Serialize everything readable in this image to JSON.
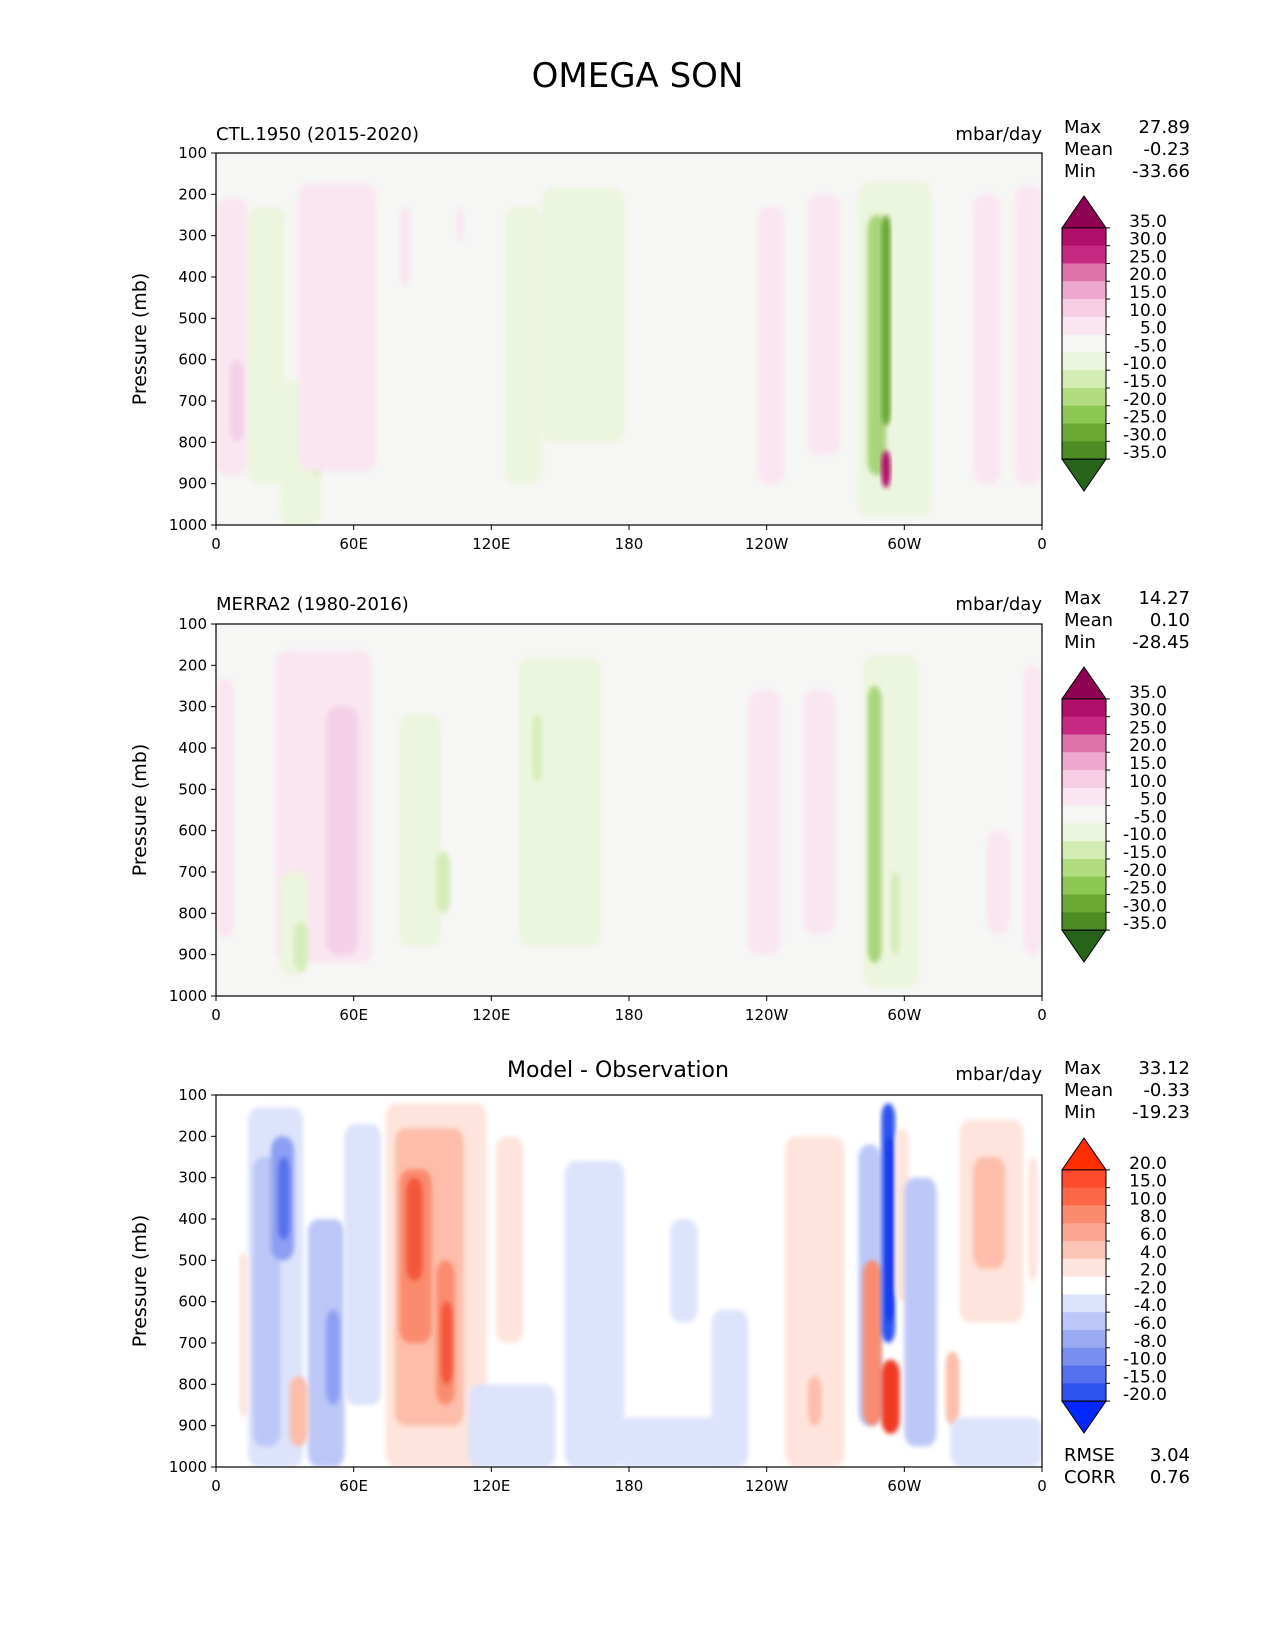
{
  "figure": {
    "title": "OMEGA SON"
  },
  "colors": {
    "background": "#f6f6f5",
    "diff_background": "#ffffff",
    "pink_light": "#f9e1ef",
    "pink_mid": "#f2c3dd",
    "magenta_dark": "#8e0152",
    "green_light": "#eaf5d8",
    "green_mid": "#cde8ad",
    "green_dark": "#4d9221",
    "red_light": "#fdd0c5",
    "red_mid": "#fb9a7f",
    "red_dark": "#ee3b24",
    "blue_light": "#dbe1fb",
    "blue_mid": "#aab7f5",
    "blue_dark": "#3d63f0"
  },
  "chart_data": [
    {
      "type": "heatmap",
      "id": "panel_model",
      "left_title": "CTL.1950 (2015-2020)",
      "center_title": "",
      "units": "mbar/day",
      "ylabel": "Pressure (mb)",
      "x_ticks": [
        "0",
        "60E",
        "120E",
        "180",
        "120W",
        "60W",
        "0"
      ],
      "x_range": [
        0,
        360
      ],
      "y_ticks": [
        "100",
        "200",
        "300",
        "400",
        "500",
        "600",
        "700",
        "800",
        "900",
        "1000"
      ],
      "y_range": [
        100,
        1000
      ],
      "stats": [
        {
          "label": "Max",
          "value": "27.89"
        },
        {
          "label": "Mean",
          "value": "-0.23"
        },
        {
          "label": "Min",
          "value": "-33.66"
        }
      ],
      "colorbar": {
        "levels": [
          "35.0",
          "30.0",
          "25.0",
          "20.0",
          "15.0",
          "10.0",
          "5.0",
          "-5.0",
          "-10.0",
          "-15.0",
          "-20.0",
          "-25.0",
          "-30.0",
          "-35.0"
        ],
        "colors": [
          "#8e0152",
          "#b0106b",
          "#c72a83",
          "#dd73a8",
          "#eda9cd",
          "#f6cde3",
          "#fae6f1",
          "#f6f6f5",
          "#ecf5dd",
          "#d3ecb3",
          "#b1dc7f",
          "#8cc653",
          "#6ba834",
          "#4d8c22",
          "#276419"
        ]
      },
      "features": [
        {
          "kind": "pos",
          "level": 1,
          "x0": 0,
          "x1": 14,
          "p0": 210,
          "p1": 880
        },
        {
          "kind": "pos",
          "level": 2,
          "x0": 6,
          "x1": 12,
          "p0": 600,
          "p1": 800
        },
        {
          "kind": "neg",
          "level": 1,
          "x0": 14,
          "x1": 30,
          "p0": 230,
          "p1": 900
        },
        {
          "kind": "neg",
          "level": 1,
          "x0": 28,
          "x1": 46,
          "p0": 650,
          "p1": 1000
        },
        {
          "kind": "neg",
          "level": 2,
          "x0": 42,
          "x1": 46,
          "p0": 820,
          "p1": 880
        },
        {
          "kind": "pos",
          "level": 1,
          "x0": 36,
          "x1": 70,
          "p0": 175,
          "p1": 870
        },
        {
          "kind": "pos",
          "level": 1,
          "x0": 80,
          "x1": 85,
          "p0": 230,
          "p1": 420
        },
        {
          "kind": "pos",
          "level": 1,
          "x0": 105,
          "x1": 108,
          "p0": 230,
          "p1": 320
        },
        {
          "kind": "neg",
          "level": 1,
          "x0": 126,
          "x1": 142,
          "p0": 230,
          "p1": 900
        },
        {
          "kind": "neg",
          "level": 1,
          "x0": 142,
          "x1": 178,
          "p0": 185,
          "p1": 800
        },
        {
          "kind": "pos",
          "level": 1,
          "x0": 236,
          "x1": 248,
          "p0": 230,
          "p1": 900
        },
        {
          "kind": "pos",
          "level": 1,
          "x0": 258,
          "x1": 272,
          "p0": 200,
          "p1": 830
        },
        {
          "kind": "neg",
          "level": 1,
          "x0": 280,
          "x1": 312,
          "p0": 170,
          "p1": 980
        },
        {
          "kind": "neg",
          "level": 3,
          "x0": 284,
          "x1": 292,
          "p0": 250,
          "p1": 880
        },
        {
          "kind": "neg",
          "level": 4,
          "x0": 290,
          "x1": 294,
          "p0": 250,
          "p1": 760
        },
        {
          "kind": "pos",
          "level": 5,
          "x0": 290,
          "x1": 294,
          "p0": 820,
          "p1": 910
        },
        {
          "kind": "pos",
          "level": 1,
          "x0": 330,
          "x1": 342,
          "p0": 200,
          "p1": 900
        },
        {
          "kind": "pos",
          "level": 1,
          "x0": 348,
          "x1": 360,
          "p0": 180,
          "p1": 900
        }
      ]
    },
    {
      "type": "heatmap",
      "id": "panel_obs",
      "left_title": "MERRA2 (1980-2016)",
      "center_title": "",
      "units": "mbar/day",
      "ylabel": "Pressure (mb)",
      "x_ticks": [
        "0",
        "60E",
        "120E",
        "180",
        "120W",
        "60W",
        "0"
      ],
      "x_range": [
        0,
        360
      ],
      "y_ticks": [
        "100",
        "200",
        "300",
        "400",
        "500",
        "600",
        "700",
        "800",
        "900",
        "1000"
      ],
      "y_range": [
        100,
        1000
      ],
      "stats": [
        {
          "label": "Max",
          "value": "14.27"
        },
        {
          "label": "Mean",
          "value": "0.10"
        },
        {
          "label": "Min",
          "value": "-28.45"
        }
      ],
      "colorbar": {
        "levels": [
          "35.0",
          "30.0",
          "25.0",
          "20.0",
          "15.0",
          "10.0",
          "5.0",
          "-5.0",
          "-10.0",
          "-15.0",
          "-20.0",
          "-25.0",
          "-30.0",
          "-35.0"
        ],
        "colors": [
          "#8e0152",
          "#b0106b",
          "#c72a83",
          "#dd73a8",
          "#eda9cd",
          "#f6cde3",
          "#fae6f1",
          "#f6f6f5",
          "#ecf5dd",
          "#d3ecb3",
          "#b1dc7f",
          "#8cc653",
          "#6ba834",
          "#4d8c22",
          "#276419"
        ]
      },
      "features": [
        {
          "kind": "pos",
          "level": 1,
          "x0": 0,
          "x1": 8,
          "p0": 230,
          "p1": 860
        },
        {
          "kind": "pos",
          "level": 1,
          "x0": 26,
          "x1": 68,
          "p0": 165,
          "p1": 920
        },
        {
          "kind": "pos",
          "level": 2,
          "x0": 48,
          "x1": 62,
          "p0": 300,
          "p1": 900
        },
        {
          "kind": "neg",
          "level": 1,
          "x0": 28,
          "x1": 40,
          "p0": 700,
          "p1": 950
        },
        {
          "kind": "neg",
          "level": 2,
          "x0": 34,
          "x1": 40,
          "p0": 820,
          "p1": 940
        },
        {
          "kind": "neg",
          "level": 1,
          "x0": 80,
          "x1": 98,
          "p0": 320,
          "p1": 880
        },
        {
          "kind": "neg",
          "level": 2,
          "x0": 96,
          "x1": 102,
          "p0": 650,
          "p1": 800
        },
        {
          "kind": "neg",
          "level": 1,
          "x0": 132,
          "x1": 168,
          "p0": 180,
          "p1": 880
        },
        {
          "kind": "neg",
          "level": 2,
          "x0": 138,
          "x1": 142,
          "p0": 320,
          "p1": 480
        },
        {
          "kind": "pos",
          "level": 1,
          "x0": 232,
          "x1": 246,
          "p0": 260,
          "p1": 900
        },
        {
          "kind": "pos",
          "level": 1,
          "x0": 256,
          "x1": 270,
          "p0": 260,
          "p1": 850
        },
        {
          "kind": "neg",
          "level": 1,
          "x0": 282,
          "x1": 306,
          "p0": 175,
          "p1": 980
        },
        {
          "kind": "neg",
          "level": 3,
          "x0": 284,
          "x1": 290,
          "p0": 250,
          "p1": 920
        },
        {
          "kind": "neg",
          "level": 2,
          "x0": 294,
          "x1": 298,
          "p0": 700,
          "p1": 900
        },
        {
          "kind": "pos",
          "level": 1,
          "x0": 336,
          "x1": 346,
          "p0": 600,
          "p1": 850
        },
        {
          "kind": "pos",
          "level": 1,
          "x0": 352,
          "x1": 360,
          "p0": 200,
          "p1": 900
        }
      ]
    },
    {
      "type": "heatmap",
      "id": "panel_diff",
      "left_title": "",
      "center_title": "Model - Observation",
      "units": "mbar/day",
      "ylabel": "Pressure (mb)",
      "x_ticks": [
        "0",
        "60E",
        "120E",
        "180",
        "120W",
        "60W",
        "0"
      ],
      "x_range": [
        0,
        360
      ],
      "y_ticks": [
        "100",
        "200",
        "300",
        "400",
        "500",
        "600",
        "700",
        "800",
        "900",
        "1000"
      ],
      "y_range": [
        100,
        1000
      ],
      "stats": [
        {
          "label": "Max",
          "value": "33.12"
        },
        {
          "label": "Mean",
          "value": "-0.33"
        },
        {
          "label": "Min",
          "value": "-19.23"
        }
      ],
      "metrics": [
        {
          "label": "RMSE",
          "value": "3.04"
        },
        {
          "label": "CORR",
          "value": "0.76"
        }
      ],
      "colorbar": {
        "levels": [
          "20.0",
          "15.0",
          "10.0",
          "8.0",
          "6.0",
          "4.0",
          "2.0",
          "-2.0",
          "-4.0",
          "-6.0",
          "-8.0",
          "-10.0",
          "-15.0",
          "-20.0"
        ],
        "colors": [
          "#ff2d00",
          "#fe4a2c",
          "#fc6748",
          "#fb8b6e",
          "#fca693",
          "#fdc5b7",
          "#fee4dc",
          "#ffffff",
          "#dde3fb",
          "#bcc7f7",
          "#9aabf3",
          "#7a8ff0",
          "#5671ee",
          "#2f53f0",
          "#0228ff"
        ]
      },
      "features": [
        {
          "kind": "neg",
          "level": 1,
          "x0": 14,
          "x1": 38,
          "p0": 130,
          "p1": 1000
        },
        {
          "kind": "neg",
          "level": 2,
          "x0": 16,
          "x1": 28,
          "p0": 250,
          "p1": 950
        },
        {
          "kind": "neg",
          "level": 3,
          "x0": 24,
          "x1": 34,
          "p0": 200,
          "p1": 500
        },
        {
          "kind": "neg",
          "level": 4,
          "x0": 27,
          "x1": 32,
          "p0": 250,
          "p1": 450
        },
        {
          "kind": "neg",
          "level": 2,
          "x0": 40,
          "x1": 56,
          "p0": 400,
          "p1": 1000
        },
        {
          "kind": "neg",
          "level": 3,
          "x0": 48,
          "x1": 54,
          "p0": 620,
          "p1": 850
        },
        {
          "kind": "pos",
          "level": 1,
          "x0": 10,
          "x1": 14,
          "p0": 480,
          "p1": 880
        },
        {
          "kind": "pos",
          "level": 2,
          "x0": 32,
          "x1": 40,
          "p0": 780,
          "p1": 950
        },
        {
          "kind": "neg",
          "level": 1,
          "x0": 56,
          "x1": 72,
          "p0": 170,
          "p1": 850
        },
        {
          "kind": "pos",
          "level": 1,
          "x0": 74,
          "x1": 118,
          "p0": 120,
          "p1": 1000
        },
        {
          "kind": "pos",
          "level": 2,
          "x0": 78,
          "x1": 108,
          "p0": 180,
          "p1": 900
        },
        {
          "kind": "pos",
          "level": 3,
          "x0": 80,
          "x1": 94,
          "p0": 280,
          "p1": 700
        },
        {
          "kind": "pos",
          "level": 4,
          "x0": 83,
          "x1": 90,
          "p0": 300,
          "p1": 550
        },
        {
          "kind": "pos",
          "level": 3,
          "x0": 96,
          "x1": 104,
          "p0": 500,
          "p1": 850
        },
        {
          "kind": "pos",
          "level": 4,
          "x0": 98,
          "x1": 103,
          "p0": 600,
          "p1": 800
        },
        {
          "kind": "pos",
          "level": 1,
          "x0": 122,
          "x1": 134,
          "p0": 200,
          "p1": 700
        },
        {
          "kind": "neg",
          "level": 1,
          "x0": 110,
          "x1": 148,
          "p0": 800,
          "p1": 1000
        },
        {
          "kind": "neg",
          "level": 1,
          "x0": 152,
          "x1": 178,
          "p0": 260,
          "p1": 1000
        },
        {
          "kind": "neg",
          "level": 1,
          "x0": 175,
          "x1": 222,
          "p0": 880,
          "p1": 1000
        },
        {
          "kind": "neg",
          "level": 1,
          "x0": 198,
          "x1": 210,
          "p0": 400,
          "p1": 650
        },
        {
          "kind": "neg",
          "level": 1,
          "x0": 216,
          "x1": 232,
          "p0": 620,
          "p1": 1000
        },
        {
          "kind": "pos",
          "level": 1,
          "x0": 248,
          "x1": 274,
          "p0": 200,
          "p1": 1000
        },
        {
          "kind": "pos",
          "level": 2,
          "x0": 258,
          "x1": 264,
          "p0": 780,
          "p1": 900
        },
        {
          "kind": "neg",
          "level": 2,
          "x0": 280,
          "x1": 290,
          "p0": 220,
          "p1": 900
        },
        {
          "kind": "pos",
          "level": 3,
          "x0": 282,
          "x1": 290,
          "p0": 500,
          "p1": 900
        },
        {
          "kind": "neg",
          "level": 5,
          "x0": 290,
          "x1": 296,
          "p0": 120,
          "p1": 700
        },
        {
          "kind": "neg",
          "level": 6,
          "x0": 292,
          "x1": 295,
          "p0": 200,
          "p1": 650
        },
        {
          "kind": "pos",
          "level": 5,
          "x0": 290,
          "x1": 298,
          "p0": 740,
          "p1": 920
        },
        {
          "kind": "pos",
          "level": 1,
          "x0": 296,
          "x1": 302,
          "p0": 180,
          "p1": 600
        },
        {
          "kind": "neg",
          "level": 2,
          "x0": 300,
          "x1": 314,
          "p0": 300,
          "p1": 950
        },
        {
          "kind": "pos",
          "level": 2,
          "x0": 318,
          "x1": 324,
          "p0": 720,
          "p1": 900
        },
        {
          "kind": "neg",
          "level": 1,
          "x0": 320,
          "x1": 360,
          "p0": 880,
          "p1": 1000
        },
        {
          "kind": "pos",
          "level": 1,
          "x0": 324,
          "x1": 352,
          "p0": 160,
          "p1": 650
        },
        {
          "kind": "pos",
          "level": 2,
          "x0": 330,
          "x1": 344,
          "p0": 250,
          "p1": 520
        },
        {
          "kind": "pos",
          "level": 1,
          "x0": 354,
          "x1": 358,
          "p0": 250,
          "p1": 550
        }
      ]
    }
  ]
}
